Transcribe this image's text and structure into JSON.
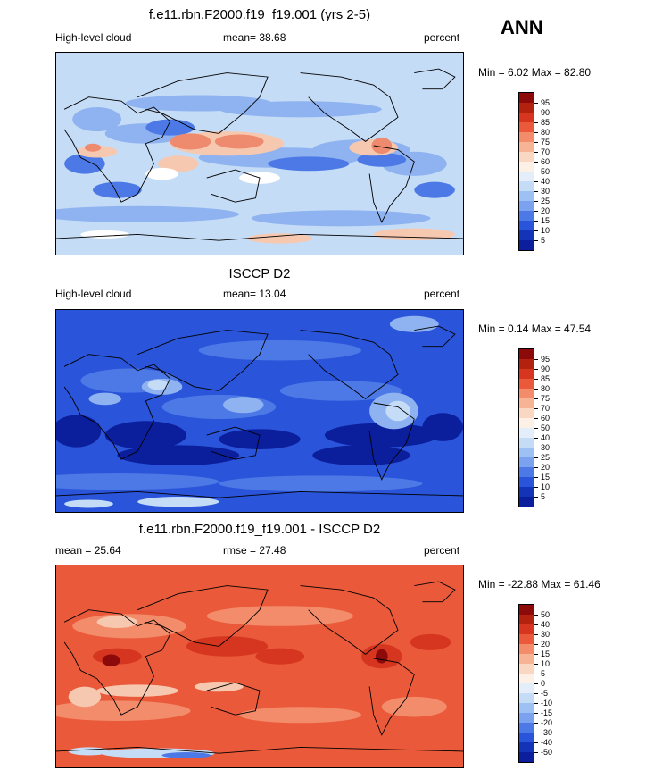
{
  "season": "ANN",
  "panels": [
    {
      "title": "f.e11.rbn.F2000.f19_f19.001 (yrs 2-5)",
      "left_label": "High-level cloud",
      "center_label": "mean=  38.68",
      "right_label": "percent",
      "minmax_label": "Min =   6.02 Max =   82.80",
      "base_color": "#c5dcf7",
      "patches": [
        {
          "c": "#8fb3f0",
          "ell": [
            [
              0.1,
              0.33,
              0.06,
              0.06
            ],
            [
              0.22,
              0.4,
              0.1,
              0.05
            ],
            [
              0.55,
              0.52,
              0.2,
              0.05
            ],
            [
              0.75,
              0.48,
              0.12,
              0.05
            ],
            [
              0.35,
              0.25,
              0.18,
              0.04
            ],
            [
              0.6,
              0.28,
              0.2,
              0.04
            ],
            [
              0.88,
              0.55,
              0.08,
              0.06
            ],
            [
              0.2,
              0.8,
              0.25,
              0.04
            ],
            [
              0.7,
              0.82,
              0.22,
              0.04
            ]
          ]
        },
        {
          "c": "#4c79e6",
          "ell": [
            [
              0.07,
              0.55,
              0.05,
              0.05
            ],
            [
              0.28,
              0.37,
              0.06,
              0.04
            ],
            [
              0.15,
              0.68,
              0.06,
              0.04
            ],
            [
              0.62,
              0.55,
              0.1,
              0.035
            ],
            [
              0.8,
              0.53,
              0.06,
              0.035
            ],
            [
              0.93,
              0.68,
              0.05,
              0.04
            ]
          ]
        },
        {
          "c": "#f7c8b0",
          "ell": [
            [
              0.42,
              0.45,
              0.14,
              0.06
            ],
            [
              0.78,
              0.47,
              0.06,
              0.04
            ],
            [
              0.1,
              0.49,
              0.05,
              0.03
            ],
            [
              0.3,
              0.55,
              0.05,
              0.04
            ],
            [
              0.88,
              0.9,
              0.1,
              0.03
            ],
            [
              0.55,
              0.92,
              0.08,
              0.025
            ]
          ]
        },
        {
          "c": "#ee8a6e",
          "ell": [
            [
              0.33,
              0.44,
              0.05,
              0.04
            ],
            [
              0.45,
              0.44,
              0.06,
              0.035
            ],
            [
              0.8,
              0.46,
              0.025,
              0.04
            ],
            [
              0.09,
              0.47,
              0.02,
              0.02
            ]
          ]
        },
        {
          "c": "#ffffff",
          "ell": [
            [
              0.26,
              0.6,
              0.04,
              0.03
            ],
            [
              0.5,
              0.62,
              0.05,
              0.03
            ],
            [
              0.12,
              0.9,
              0.06,
              0.02
            ]
          ]
        }
      ]
    },
    {
      "title": "ISCCP D2",
      "left_label": "High-level cloud",
      "center_label": "mean=  13.04",
      "right_label": "percent",
      "minmax_label": "Min =   0.14 Max =   47.54",
      "base_color": "#2a54d9",
      "patches": [
        {
          "c": "#0b1e9c",
          "ell": [
            [
              0.05,
              0.6,
              0.06,
              0.08
            ],
            [
              0.22,
              0.62,
              0.1,
              0.07
            ],
            [
              0.5,
              0.64,
              0.1,
              0.05
            ],
            [
              0.8,
              0.62,
              0.14,
              0.06
            ],
            [
              0.95,
              0.58,
              0.05,
              0.07
            ],
            [
              0.3,
              0.72,
              0.15,
              0.05
            ],
            [
              0.75,
              0.72,
              0.12,
              0.05
            ]
          ]
        },
        {
          "c": "#4c79e6",
          "ell": [
            [
              0.18,
              0.35,
              0.12,
              0.06
            ],
            [
              0.55,
              0.2,
              0.2,
              0.05
            ],
            [
              0.4,
              0.48,
              0.14,
              0.06
            ],
            [
              0.7,
              0.4,
              0.15,
              0.05
            ],
            [
              0.15,
              0.85,
              0.25,
              0.04
            ],
            [
              0.65,
              0.86,
              0.25,
              0.04
            ]
          ]
        },
        {
          "c": "#8fb3f0",
          "ell": [
            [
              0.26,
              0.38,
              0.05,
              0.04
            ],
            [
              0.83,
              0.5,
              0.06,
              0.09
            ],
            [
              0.12,
              0.44,
              0.04,
              0.03
            ],
            [
              0.46,
              0.47,
              0.05,
              0.04
            ],
            [
              0.88,
              0.07,
              0.06,
              0.04
            ]
          ]
        },
        {
          "c": "#c5dcf7",
          "ell": [
            [
              0.25,
              0.37,
              0.025,
              0.025
            ],
            [
              0.84,
              0.5,
              0.03,
              0.05
            ],
            [
              0.3,
              0.95,
              0.1,
              0.025
            ],
            [
              0.08,
              0.96,
              0.06,
              0.02
            ]
          ]
        }
      ]
    },
    {
      "title": "f.e11.rbn.F2000.f19_f19.001 - ISCCP D2",
      "left_label": "mean =  25.64",
      "center_label": "rmse =  27.48",
      "right_label": "percent",
      "minmax_label": "Min = -22.88 Max =   61.46",
      "base_color": "#ea5a3a",
      "patches": [
        {
          "c": "#f28c6a",
          "ell": [
            [
              0.18,
              0.3,
              0.14,
              0.06
            ],
            [
              0.55,
              0.25,
              0.18,
              0.05
            ],
            [
              0.15,
              0.72,
              0.18,
              0.05
            ],
            [
              0.6,
              0.74,
              0.15,
              0.04
            ],
            [
              0.88,
              0.7,
              0.08,
              0.05
            ]
          ]
        },
        {
          "c": "#f7c8b0",
          "ell": [
            [
              0.2,
              0.62,
              0.1,
              0.03
            ],
            [
              0.4,
              0.6,
              0.06,
              0.025
            ],
            [
              0.07,
              0.65,
              0.04,
              0.05
            ],
            [
              0.15,
              0.28,
              0.05,
              0.03
            ]
          ]
        },
        {
          "c": "#d6361f",
          "ell": [
            [
              0.42,
              0.4,
              0.1,
              0.05
            ],
            [
              0.8,
              0.45,
              0.05,
              0.06
            ],
            [
              0.15,
              0.45,
              0.06,
              0.04
            ],
            [
              0.92,
              0.38,
              0.05,
              0.04
            ],
            [
              0.55,
              0.45,
              0.06,
              0.04
            ]
          ]
        },
        {
          "c": "#8c0a0a",
          "ell": [
            [
              0.135,
              0.47,
              0.022,
              0.03
            ],
            [
              0.8,
              0.45,
              0.015,
              0.035
            ]
          ]
        },
        {
          "c": "#c5dcf7",
          "ell": [
            [
              0.25,
              0.93,
              0.14,
              0.025
            ],
            [
              0.08,
              0.92,
              0.05,
              0.02
            ]
          ]
        },
        {
          "c": "#4c79e6",
          "ell": [
            [
              0.32,
              0.94,
              0.06,
              0.015
            ]
          ]
        }
      ]
    }
  ],
  "colorbars": [
    {
      "labels": [
        "95",
        "90",
        "85",
        "80",
        "75",
        "70",
        "60",
        "50",
        "40",
        "30",
        "25",
        "20",
        "15",
        "10",
        "5"
      ],
      "colors": [
        "#8c0a0a",
        "#b3220f",
        "#d6361f",
        "#ea5a3a",
        "#f28c6a",
        "#f7b396",
        "#fad7c3",
        "#fdf0e6",
        "#e4eefb",
        "#c5dcf7",
        "#9fc0f3",
        "#7aa2ee",
        "#4c79e6",
        "#2a54d9",
        "#1434b8",
        "#0b1e9c"
      ]
    },
    {
      "labels": [
        "95",
        "90",
        "85",
        "80",
        "75",
        "70",
        "60",
        "50",
        "40",
        "30",
        "25",
        "20",
        "15",
        "10",
        "5"
      ],
      "colors": [
        "#8c0a0a",
        "#b3220f",
        "#d6361f",
        "#ea5a3a",
        "#f28c6a",
        "#f7b396",
        "#fad7c3",
        "#fdf0e6",
        "#e4eefb",
        "#c5dcf7",
        "#9fc0f3",
        "#7aa2ee",
        "#4c79e6",
        "#2a54d9",
        "#1434b8",
        "#0b1e9c"
      ]
    },
    {
      "labels": [
        "50",
        "40",
        "30",
        "20",
        "15",
        "10",
        "5",
        "0",
        "-5",
        "-10",
        "-15",
        "-20",
        "-30",
        "-40",
        "-50"
      ],
      "colors": [
        "#8c0a0a",
        "#b3220f",
        "#d6361f",
        "#ea5a3a",
        "#f28c6a",
        "#f7b396",
        "#fad7c3",
        "#fdf0e6",
        "#e4eefb",
        "#c5dcf7",
        "#9fc0f3",
        "#7aa2ee",
        "#4c79e6",
        "#2a54d9",
        "#1434b8",
        "#0b1e9c"
      ]
    }
  ]
}
